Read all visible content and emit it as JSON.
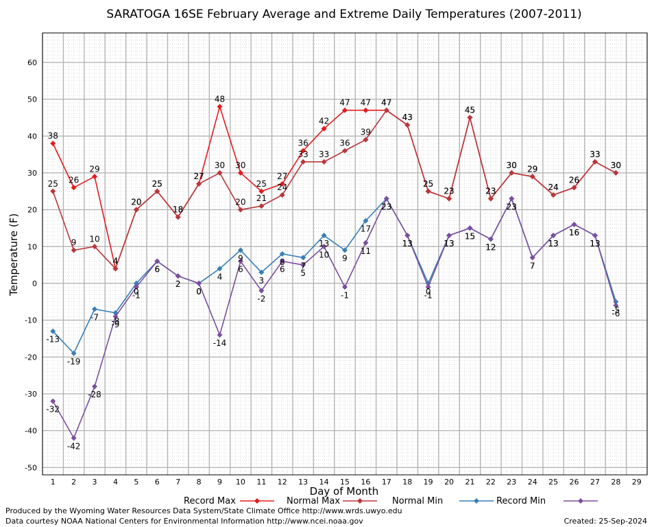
{
  "chart_data": {
    "type": "line",
    "title": "SARATOGA 16SE February Average and Extreme Daily Temperatures (2007-2011)",
    "xlabel": "Day of Month",
    "ylabel": "Temperature (F)",
    "x": [
      1,
      2,
      3,
      4,
      5,
      6,
      7,
      8,
      9,
      10,
      11,
      12,
      13,
      14,
      15,
      16,
      17,
      18,
      19,
      20,
      21,
      22,
      23,
      24,
      25,
      26,
      27,
      28
    ],
    "xticks": [
      1,
      2,
      3,
      4,
      5,
      6,
      7,
      8,
      9,
      10,
      11,
      12,
      13,
      14,
      15,
      16,
      17,
      18,
      19,
      20,
      21,
      22,
      23,
      24,
      25,
      26,
      27,
      28,
      29
    ],
    "xlim": [
      0.5,
      29.5
    ],
    "ylim": [
      -52,
      68
    ],
    "yticks": [
      -50,
      -40,
      -30,
      -20,
      -10,
      0,
      10,
      20,
      30,
      40,
      50,
      60
    ],
    "grid": true,
    "legend_position": "bottom",
    "series": [
      {
        "name": "Record Max",
        "color": "#e41a1c",
        "values": [
          38,
          26,
          29,
          4,
          20,
          25,
          18,
          27,
          48,
          30,
          25,
          27,
          36,
          42,
          47,
          47,
          47,
          43,
          25,
          23,
          45,
          23,
          30,
          29,
          24,
          26,
          33,
          30
        ]
      },
      {
        "name": "Normal Max",
        "color": "#b9363b",
        "values": [
          25,
          9,
          10,
          4,
          20,
          25,
          18,
          27,
          30,
          20,
          21,
          24,
          33,
          33,
          36,
          39,
          47,
          43,
          25,
          23,
          45,
          23,
          30,
          29,
          24,
          26,
          33,
          30
        ]
      },
      {
        "name": "Normal Min",
        "color": "#377eb8",
        "values": [
          -13,
          -19,
          -7,
          -8,
          0,
          6,
          2,
          0,
          4,
          9,
          3,
          8,
          7,
          13,
          9,
          17,
          23,
          13,
          0,
          13,
          15,
          12,
          23,
          7,
          13,
          16,
          13,
          -5
        ]
      },
      {
        "name": "Record Min",
        "color": "#7b4f9e",
        "values": [
          -32,
          -42,
          -28,
          -9,
          -1,
          6,
          2,
          0,
          -14,
          6,
          -2,
          6,
          5,
          10,
          -1,
          11,
          23,
          13,
          -1,
          13,
          15,
          12,
          23,
          7,
          13,
          16,
          13,
          -6
        ]
      }
    ]
  },
  "footer": {
    "produced_by": "Produced by the Wyoming Water Resources Data System/State Climate Office http://www.wrds.uwyo.edu",
    "courtesy": "Data courtesy NOAA National Centers for Environmental Information http://www.ncei.noaa.gov",
    "created": "Created:  25-Sep-2024"
  }
}
